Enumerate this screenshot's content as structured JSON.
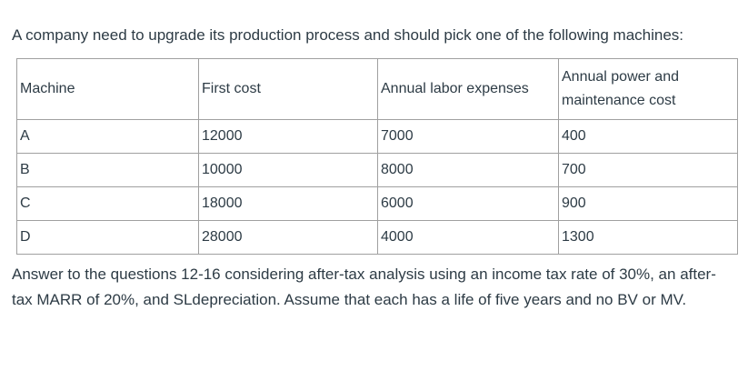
{
  "intro": "A company need to upgrade its production process and should pick one of the following machines:",
  "table": {
    "headers": [
      "Machine",
      "First cost",
      "Annual labor expenses",
      "Annual power and maintenance cost"
    ],
    "rows": [
      [
        "A",
        "12000",
        "7000",
        "400"
      ],
      [
        "B",
        "10000",
        "8000",
        "700"
      ],
      [
        "C",
        "18000",
        "6000",
        "900"
      ],
      [
        "D",
        "28000",
        "4000",
        "1300"
      ]
    ]
  },
  "answer": "Answer to the questions 12-16 considering after-tax analysis using an income tax rate of 30%, an after-tax MARR of 20%, and SLdepreciation. Assume that each has a life of five years and no BV or MV."
}
